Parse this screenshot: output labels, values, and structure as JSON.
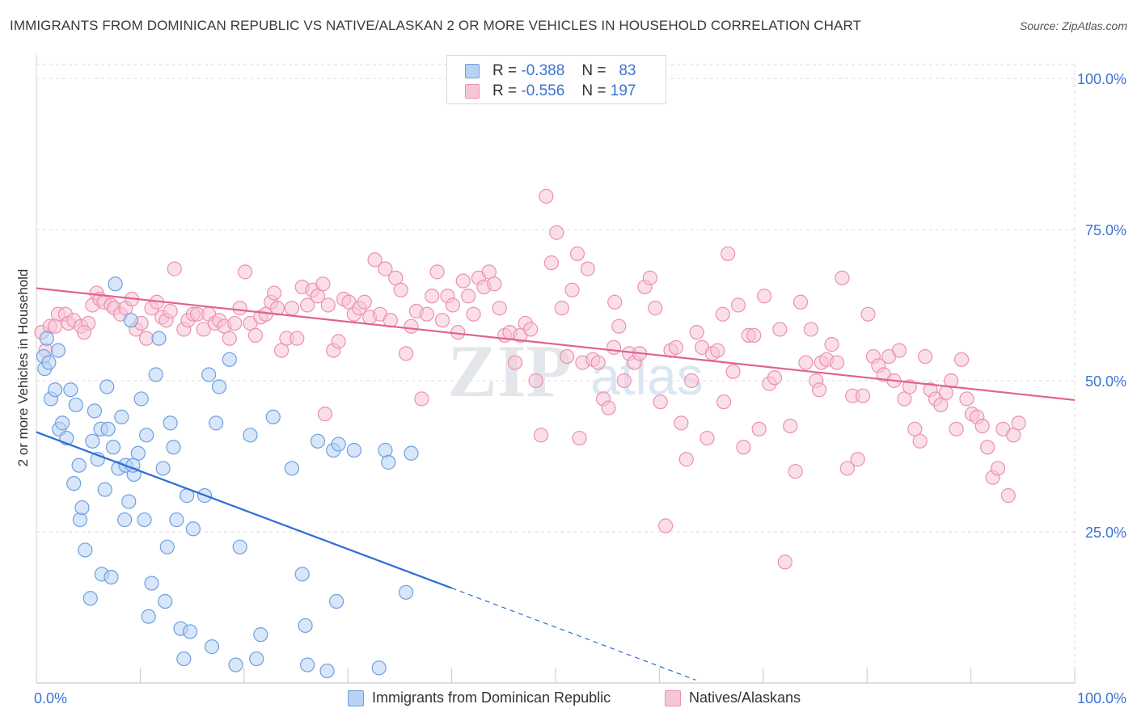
{
  "title": "IMMIGRANTS FROM DOMINICAN REPUBLIC VS NATIVE/ALASKAN 2 OR MORE VEHICLES IN HOUSEHOLD CORRELATION CHART",
  "source": "Source: ZipAtlas.com",
  "watermark": {
    "zip": "ZIP",
    "atlas": "atlas"
  },
  "colors": {
    "blue_fill": "#b8d2f4",
    "blue_stroke": "#6f9fe0",
    "blue_line": "#2a6fd6",
    "pink_fill": "#f7c5d6",
    "pink_stroke": "#ec90b0",
    "pink_line": "#e0628e",
    "axis_label": "#3b74d0",
    "grid": "#dcdcdc"
  },
  "legend_top": [
    {
      "r_label": "R =",
      "r_value": "-0.388",
      "n_label": "N =",
      "n_value": "83"
    },
    {
      "r_label": "R =",
      "r_value": "-0.556",
      "n_label": "N =",
      "n_value": "197"
    }
  ],
  "legend_bottom": [
    "Immigrants from Dominican Republic",
    "Natives/Alaskans"
  ],
  "chart_data": {
    "type": "scatter",
    "title": "IMMIGRANTS FROM DOMINICAN REPUBLIC VS NATIVE/ALASKAN 2 OR MORE VEHICLES IN HOUSEHOLD CORRELATION CHART",
    "xlabel": "",
    "ylabel": "2 or more Vehicles in Household",
    "xlim": [
      0,
      100
    ],
    "ylim": [
      0,
      100
    ],
    "x_tick_labels": [
      "0.0%",
      "100.0%"
    ],
    "y_tick_labels": [
      "100.0%",
      "75.0%",
      "50.0%",
      "25.0%"
    ],
    "y_ticks": [
      100,
      75,
      50,
      25
    ],
    "grid": true,
    "legend": "top-center",
    "series": [
      {
        "name": "Immigrants from Dominican Republic",
        "color": "#6f9fe0",
        "trend": {
          "x": [
            0,
            40
          ],
          "y": [
            41.5,
            15.7
          ],
          "dashed_to": [
            63.5,
            0.5
          ]
        },
        "points": [
          [
            0.7,
            54
          ],
          [
            0.8,
            52
          ],
          [
            1.2,
            53
          ],
          [
            1.4,
            47
          ],
          [
            1.8,
            48.5
          ],
          [
            2.2,
            42
          ],
          [
            2.5,
            43
          ],
          [
            2.9,
            40.5
          ],
          [
            3.3,
            48.5
          ],
          [
            3.6,
            33
          ],
          [
            3.8,
            46
          ],
          [
            4.2,
            27
          ],
          [
            4.4,
            29
          ],
          [
            4.7,
            22
          ],
          [
            5.2,
            14
          ],
          [
            5.4,
            40
          ],
          [
            5.6,
            45
          ],
          [
            5.9,
            37
          ],
          [
            6.2,
            42
          ],
          [
            6.3,
            18
          ],
          [
            6.6,
            32
          ],
          [
            6.8,
            49
          ],
          [
            7.2,
            17.5
          ],
          [
            7.4,
            39
          ],
          [
            7.6,
            66
          ],
          [
            7.9,
            35.5
          ],
          [
            8.2,
            44
          ],
          [
            8.5,
            27
          ],
          [
            8.6,
            36
          ],
          [
            8.9,
            30
          ],
          [
            9.1,
            60
          ],
          [
            9.4,
            34.5
          ],
          [
            9.8,
            38
          ],
          [
            10.1,
            47
          ],
          [
            10.4,
            27
          ],
          [
            10.6,
            41
          ],
          [
            10.8,
            11
          ],
          [
            11.1,
            16.5
          ],
          [
            11.5,
            51
          ],
          [
            11.8,
            57
          ],
          [
            12.2,
            35.5
          ],
          [
            12.4,
            13.5
          ],
          [
            12.6,
            22.5
          ],
          [
            12.9,
            43
          ],
          [
            13.2,
            39
          ],
          [
            13.5,
            27
          ],
          [
            13.9,
            9
          ],
          [
            14.2,
            4
          ],
          [
            14.5,
            31
          ],
          [
            14.8,
            8.5
          ],
          [
            15.1,
            25.5
          ],
          [
            16.2,
            31
          ],
          [
            16.6,
            51
          ],
          [
            16.9,
            6
          ],
          [
            17.3,
            43
          ],
          [
            17.6,
            49
          ],
          [
            18.6,
            53.5
          ],
          [
            19.2,
            3
          ],
          [
            19.6,
            22.5
          ],
          [
            20.6,
            41
          ],
          [
            21.2,
            4
          ],
          [
            21.6,
            8
          ],
          [
            22.8,
            44
          ],
          [
            24.6,
            35.5
          ],
          [
            25.6,
            18
          ],
          [
            25.9,
            9.5
          ],
          [
            26.1,
            3
          ],
          [
            27.1,
            40
          ],
          [
            28,
            2
          ],
          [
            28.6,
            38.5
          ],
          [
            28.9,
            13.5
          ],
          [
            29.1,
            39.5
          ],
          [
            30.6,
            38.5
          ],
          [
            33,
            2.5
          ],
          [
            33.6,
            38.5
          ],
          [
            33.9,
            36.5
          ],
          [
            35.6,
            15
          ],
          [
            36.1,
            38
          ],
          [
            1,
            57
          ],
          [
            2.1,
            55
          ],
          [
            4.1,
            36
          ],
          [
            6.9,
            42
          ],
          [
            9.3,
            36
          ]
        ]
      },
      {
        "name": "Natives/Alaskans",
        "color": "#ec90b0",
        "trend": {
          "x": [
            0,
            100
          ],
          "y": [
            65.3,
            46.8
          ]
        },
        "points": [
          [
            0.5,
            58
          ],
          [
            0.9,
            55
          ],
          [
            1.3,
            59
          ],
          [
            2.1,
            61
          ],
          [
            2.8,
            61
          ],
          [
            3.1,
            59.5
          ],
          [
            3.6,
            60
          ],
          [
            4.3,
            59
          ],
          [
            5,
            59.5
          ],
          [
            5.4,
            62.5
          ],
          [
            5.8,
            64.5
          ],
          [
            6.1,
            63.5
          ],
          [
            6.5,
            63
          ],
          [
            7.2,
            62.5
          ],
          [
            7.5,
            62
          ],
          [
            8.1,
            61
          ],
          [
            8.6,
            62
          ],
          [
            9.2,
            63.5
          ],
          [
            9.6,
            58.5
          ],
          [
            10.1,
            59.5
          ],
          [
            10.6,
            57
          ],
          [
            11.1,
            62
          ],
          [
            11.6,
            63
          ],
          [
            12.1,
            60.5
          ],
          [
            12.5,
            60
          ],
          [
            12.9,
            61.5
          ],
          [
            13.3,
            68.5
          ],
          [
            14.2,
            58.5
          ],
          [
            14.6,
            60
          ],
          [
            15.1,
            61
          ],
          [
            15.5,
            61
          ],
          [
            16.1,
            58.5
          ],
          [
            16.6,
            61
          ],
          [
            17.2,
            59.5
          ],
          [
            17.6,
            60
          ],
          [
            18.1,
            59
          ],
          [
            18.6,
            57
          ],
          [
            19.1,
            59.5
          ],
          [
            19.6,
            62
          ],
          [
            20.1,
            68
          ],
          [
            20.6,
            59.5
          ],
          [
            21.1,
            57.5
          ],
          [
            21.6,
            60.5
          ],
          [
            22.1,
            61
          ],
          [
            22.6,
            63
          ],
          [
            23.2,
            62
          ],
          [
            23.6,
            55
          ],
          [
            24.1,
            57
          ],
          [
            24.6,
            62
          ],
          [
            25.1,
            57
          ],
          [
            25.6,
            65.5
          ],
          [
            26.1,
            62.5
          ],
          [
            26.6,
            65
          ],
          [
            27.1,
            64
          ],
          [
            27.6,
            66
          ],
          [
            28.1,
            62.5
          ],
          [
            28.6,
            55
          ],
          [
            29.1,
            56.5
          ],
          [
            29.6,
            63.5
          ],
          [
            30.1,
            63
          ],
          [
            30.6,
            61
          ],
          [
            31.1,
            62
          ],
          [
            31.6,
            63
          ],
          [
            32.1,
            60.5
          ],
          [
            32.6,
            70
          ],
          [
            33.1,
            61
          ],
          [
            33.6,
            68.5
          ],
          [
            34.1,
            60
          ],
          [
            34.6,
            67
          ],
          [
            35.1,
            65
          ],
          [
            35.6,
            54.5
          ],
          [
            36.1,
            59
          ],
          [
            36.6,
            61.5
          ],
          [
            37.1,
            47
          ],
          [
            37.6,
            61
          ],
          [
            38.1,
            64
          ],
          [
            38.6,
            68
          ],
          [
            39.1,
            60
          ],
          [
            39.6,
            64
          ],
          [
            40.1,
            62.5
          ],
          [
            40.6,
            58
          ],
          [
            41.1,
            66.5
          ],
          [
            41.6,
            64
          ],
          [
            42.1,
            61
          ],
          [
            42.6,
            67
          ],
          [
            43.1,
            65.5
          ],
          [
            43.6,
            68
          ],
          [
            44.1,
            66
          ],
          [
            44.6,
            62
          ],
          [
            45.1,
            57.5
          ],
          [
            45.6,
            58
          ],
          [
            46.1,
            53
          ],
          [
            46.6,
            57.5
          ],
          [
            47.1,
            59.5
          ],
          [
            47.6,
            58.5
          ],
          [
            48.1,
            50
          ],
          [
            48.6,
            41
          ],
          [
            49.1,
            80.5
          ],
          [
            49.6,
            69.5
          ],
          [
            50.1,
            74.5
          ],
          [
            50.6,
            62
          ],
          [
            51.1,
            54
          ],
          [
            51.6,
            65
          ],
          [
            52.1,
            71
          ],
          [
            52.6,
            53
          ],
          [
            53.1,
            68.5
          ],
          [
            53.6,
            53.5
          ],
          [
            54.1,
            53
          ],
          [
            54.6,
            47
          ],
          [
            55.1,
            45.5
          ],
          [
            55.6,
            55.5
          ],
          [
            56.1,
            59
          ],
          [
            56.6,
            50
          ],
          [
            57.1,
            54.5
          ],
          [
            57.6,
            53
          ],
          [
            58.1,
            54.5
          ],
          [
            58.6,
            65.5
          ],
          [
            59.1,
            67
          ],
          [
            59.6,
            62
          ],
          [
            60.1,
            46.5
          ],
          [
            60.6,
            26
          ],
          [
            61.1,
            55
          ],
          [
            61.6,
            55.5
          ],
          [
            62.1,
            43
          ],
          [
            62.6,
            37
          ],
          [
            63.1,
            50
          ],
          [
            63.6,
            58
          ],
          [
            64.1,
            55.5
          ],
          [
            64.6,
            40.5
          ],
          [
            65.1,
            54.5
          ],
          [
            65.6,
            55
          ],
          [
            66.1,
            61
          ],
          [
            66.6,
            71
          ],
          [
            67.1,
            51.5
          ],
          [
            67.6,
            62.5
          ],
          [
            68.1,
            39
          ],
          [
            68.6,
            57.5
          ],
          [
            69.1,
            57.5
          ],
          [
            69.6,
            42
          ],
          [
            70.1,
            64
          ],
          [
            70.6,
            49.5
          ],
          [
            71.1,
            50.5
          ],
          [
            71.6,
            58.5
          ],
          [
            72.1,
            20
          ],
          [
            72.6,
            42.5
          ],
          [
            73.1,
            35
          ],
          [
            73.6,
            63
          ],
          [
            74.1,
            53
          ],
          [
            74.6,
            58.5
          ],
          [
            75.1,
            50
          ],
          [
            75.6,
            53
          ],
          [
            76.1,
            53.5
          ],
          [
            76.6,
            56
          ],
          [
            77.1,
            53
          ],
          [
            77.6,
            67
          ],
          [
            78.1,
            35.5
          ],
          [
            78.6,
            47.5
          ],
          [
            79.1,
            37
          ],
          [
            79.6,
            47.5
          ],
          [
            80.1,
            61
          ],
          [
            80.6,
            54
          ],
          [
            81.1,
            52.5
          ],
          [
            81.6,
            51
          ],
          [
            82.1,
            54
          ],
          [
            82.6,
            50
          ],
          [
            83.1,
            55
          ],
          [
            83.6,
            47
          ],
          [
            84.1,
            49
          ],
          [
            84.6,
            42
          ],
          [
            85.1,
            40
          ],
          [
            85.6,
            54
          ],
          [
            86.1,
            48.5
          ],
          [
            86.6,
            47
          ],
          [
            87.1,
            46
          ],
          [
            87.6,
            48
          ],
          [
            88.1,
            50
          ],
          [
            88.6,
            42
          ],
          [
            89.1,
            53.5
          ],
          [
            89.6,
            47
          ],
          [
            90.1,
            44.5
          ],
          [
            90.6,
            44
          ],
          [
            91.1,
            42.5
          ],
          [
            91.6,
            39
          ],
          [
            92.1,
            34
          ],
          [
            92.6,
            35.5
          ],
          [
            93.1,
            42
          ],
          [
            93.6,
            31
          ],
          [
            94.1,
            41
          ],
          [
            94.6,
            43
          ],
          [
            1.8,
            59
          ],
          [
            4.6,
            58
          ],
          [
            22.9,
            64.5
          ],
          [
            27.8,
            44.5
          ],
          [
            52.3,
            40.5
          ],
          [
            55.7,
            63
          ],
          [
            66.2,
            46.5
          ],
          [
            75.4,
            48.5
          ]
        ]
      }
    ]
  }
}
